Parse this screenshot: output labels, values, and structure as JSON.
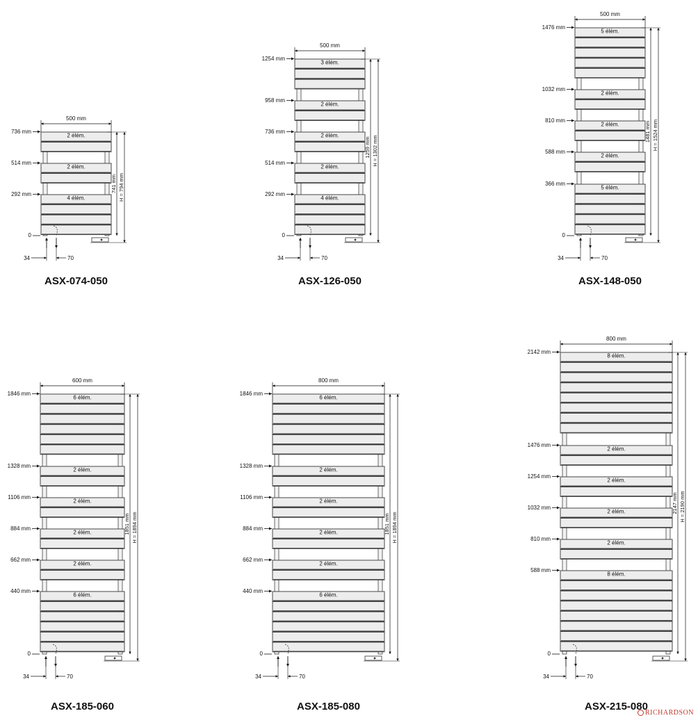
{
  "brand": {
    "logo_text": "RICHARDSON"
  },
  "models": [
    {
      "model": "ASX-074-050",
      "width_label": "500  mm",
      "zero_label": "0",
      "total_height_label": "741  mm",
      "overall_height_label": "H = 794  mm",
      "connection_left_label": "34",
      "connection_right_label": "70",
      "groups": [
        {
          "elevation_label": "736 mm",
          "elements_label": "2 élém.",
          "elements": 2
        },
        {
          "elevation_label": "514 mm",
          "elements_label": "2 élém.",
          "elements": 2
        },
        {
          "elevation_label": "292 mm",
          "elements_label": "4 élém.",
          "elements": 4
        }
      ]
    },
    {
      "model": "ASX-126-050",
      "width_label": "500  mm",
      "zero_label": "0",
      "total_height_label": "1259  mm",
      "overall_height_label": "H = 1302  mm",
      "connection_left_label": "34",
      "connection_right_label": "70",
      "groups": [
        {
          "elevation_label": "1254 mm",
          "elements_label": "3 élém.",
          "elements": 3
        },
        {
          "elevation_label": "958 mm",
          "elements_label": "2 élém.",
          "elements": 2
        },
        {
          "elevation_label": "736 mm",
          "elements_label": "2 élém.",
          "elements": 2
        },
        {
          "elevation_label": "514 mm",
          "elements_label": "2 élém.",
          "elements": 2
        },
        {
          "elevation_label": "292 mm",
          "elements_label": "4 élém.",
          "elements": 4
        }
      ]
    },
    {
      "model": "ASX-148-050",
      "width_label": "500  mm",
      "zero_label": "0",
      "total_height_label": "1481  mm",
      "overall_height_label": "H = 1524  mm",
      "connection_left_label": "34",
      "connection_right_label": "70",
      "groups": [
        {
          "elevation_label": "1476 mm",
          "elements_label": "5 élém.",
          "elements": 5
        },
        {
          "elevation_label": "1032 mm",
          "elements_label": "2 élém.",
          "elements": 2
        },
        {
          "elevation_label": "810 mm",
          "elements_label": "2 élém.",
          "elements": 2
        },
        {
          "elevation_label": "588 mm",
          "elements_label": "2 élém.",
          "elements": 2
        },
        {
          "elevation_label": "366 mm",
          "elements_label": "5 élém.",
          "elements": 5
        }
      ]
    },
    {
      "model": "ASX-185-060",
      "width_label": "600  mm",
      "zero_label": "0",
      "total_height_label": "1851  mm",
      "overall_height_label": "H = 1894  mm",
      "connection_left_label": "34",
      "connection_right_label": "70",
      "groups": [
        {
          "elevation_label": "1846 mm",
          "elements_label": "6 élém.",
          "elements": 6
        },
        {
          "elevation_label": "1328 mm",
          "elements_label": "2 élém.",
          "elements": 2
        },
        {
          "elevation_label": "1106 mm",
          "elements_label": "2 élém.",
          "elements": 2
        },
        {
          "elevation_label": "884 mm",
          "elements_label": "2 élém.",
          "elements": 2
        },
        {
          "elevation_label": "662 mm",
          "elements_label": "2 élém.",
          "elements": 2
        },
        {
          "elevation_label": "440 mm",
          "elements_label": "6 élém.",
          "elements": 6
        }
      ]
    },
    {
      "model": "ASX-185-080",
      "width_label": "800  mm",
      "zero_label": "0",
      "total_height_label": "1851  mm",
      "overall_height_label": "H = 1894  mm",
      "connection_left_label": "34",
      "connection_right_label": "70",
      "groups": [
        {
          "elevation_label": "1846 mm",
          "elements_label": "6 élém.",
          "elements": 6
        },
        {
          "elevation_label": "1328 mm",
          "elements_label": "2 élém.",
          "elements": 2
        },
        {
          "elevation_label": "1106 mm",
          "elements_label": "2 élém.",
          "elements": 2
        },
        {
          "elevation_label": "884 mm",
          "elements_label": "2 élém.",
          "elements": 2
        },
        {
          "elevation_label": "662 mm",
          "elements_label": "2 élém.",
          "elements": 2
        },
        {
          "elevation_label": "440 mm",
          "elements_label": "6 élém.",
          "elements": 6
        }
      ]
    },
    {
      "model": "ASX-215-080",
      "width_label": "800  mm",
      "zero_label": "0",
      "total_height_label": "2147  mm",
      "overall_height_label": "H = 2190  mm",
      "connection_left_label": "34",
      "connection_right_label": "70",
      "groups": [
        {
          "elevation_label": "2142 mm",
          "elements_label": "8 élém.",
          "elements": 8
        },
        {
          "elevation_label": "1476 mm",
          "elements_label": "2 élém.",
          "elements": 2
        },
        {
          "elevation_label": "1254 mm",
          "elements_label": "2 élém.",
          "elements": 2
        },
        {
          "elevation_label": "1032 mm",
          "elements_label": "2 élém.",
          "elements": 2
        },
        {
          "elevation_label": "810 mm",
          "elements_label": "2 élém.",
          "elements": 2
        },
        {
          "elevation_label": "588 mm",
          "elements_label": "8 élém.",
          "elements": 8
        }
      ]
    }
  ]
}
